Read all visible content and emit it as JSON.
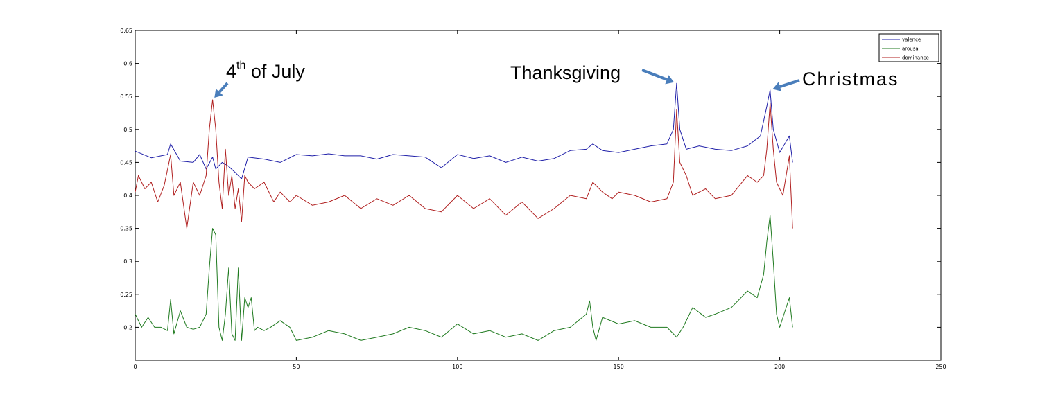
{
  "chart_data": {
    "type": "line",
    "title": "",
    "xlabel": "",
    "ylabel": "",
    "xlim": [
      0,
      250
    ],
    "ylim": [
      0.15,
      0.65
    ],
    "xticks": [
      0,
      50,
      100,
      150,
      200,
      250
    ],
    "yticks": [
      0.2,
      0.25,
      0.3,
      0.35,
      0.4,
      0.45,
      0.5,
      0.55,
      0.6,
      0.65
    ],
    "legend_position": "top-right",
    "series": [
      {
        "name": "valence",
        "color": "#1f1fa8",
        "x": [
          0,
          5,
          10,
          11,
          14,
          18,
          20,
          22,
          24,
          25,
          27,
          29,
          31,
          33,
          35,
          40,
          45,
          50,
          55,
          60,
          65,
          70,
          75,
          80,
          85,
          90,
          95,
          100,
          105,
          110,
          115,
          120,
          125,
          130,
          135,
          140,
          142,
          145,
          150,
          155,
          160,
          165,
          167,
          168,
          169,
          171,
          175,
          180,
          185,
          190,
          194,
          196,
          197,
          198,
          200,
          203,
          204
        ],
        "y": [
          0.467,
          0.457,
          0.462,
          0.478,
          0.452,
          0.45,
          0.462,
          0.44,
          0.458,
          0.44,
          0.45,
          0.444,
          0.435,
          0.425,
          0.458,
          0.455,
          0.45,
          0.462,
          0.46,
          0.463,
          0.46,
          0.46,
          0.455,
          0.462,
          0.46,
          0.458,
          0.442,
          0.462,
          0.456,
          0.46,
          0.45,
          0.458,
          0.452,
          0.456,
          0.468,
          0.47,
          0.478,
          0.468,
          0.465,
          0.47,
          0.475,
          0.478,
          0.5,
          0.57,
          0.5,
          0.47,
          0.475,
          0.47,
          0.468,
          0.475,
          0.49,
          0.535,
          0.56,
          0.5,
          0.465,
          0.49,
          0.45
        ]
      },
      {
        "name": "arousal",
        "color": "#1f7a1f",
        "x": [
          0,
          2,
          4,
          6,
          8,
          10,
          11,
          12,
          14,
          16,
          18,
          20,
          22,
          23,
          24,
          25,
          26,
          27,
          28,
          29,
          30,
          31,
          32,
          33,
          34,
          35,
          36,
          37,
          38,
          40,
          42,
          45,
          48,
          50,
          55,
          60,
          65,
          70,
          75,
          80,
          85,
          90,
          95,
          100,
          105,
          110,
          115,
          120,
          125,
          130,
          135,
          140,
          141,
          142,
          143,
          145,
          150,
          155,
          160,
          165,
          167,
          168,
          170,
          173,
          177,
          180,
          185,
          190,
          193,
          195,
          196,
          197,
          198,
          199,
          200,
          203,
          204
        ],
        "y": [
          0.22,
          0.2,
          0.215,
          0.2,
          0.2,
          0.195,
          0.242,
          0.19,
          0.225,
          0.2,
          0.197,
          0.2,
          0.22,
          0.29,
          0.35,
          0.34,
          0.2,
          0.18,
          0.22,
          0.29,
          0.19,
          0.18,
          0.29,
          0.18,
          0.245,
          0.23,
          0.245,
          0.195,
          0.2,
          0.195,
          0.2,
          0.21,
          0.2,
          0.18,
          0.185,
          0.195,
          0.19,
          0.18,
          0.185,
          0.19,
          0.2,
          0.195,
          0.185,
          0.205,
          0.19,
          0.195,
          0.185,
          0.19,
          0.18,
          0.195,
          0.2,
          0.22,
          0.24,
          0.2,
          0.18,
          0.215,
          0.205,
          0.21,
          0.2,
          0.2,
          0.19,
          0.185,
          0.2,
          0.23,
          0.215,
          0.22,
          0.23,
          0.255,
          0.245,
          0.28,
          0.33,
          0.37,
          0.3,
          0.22,
          0.2,
          0.245,
          0.2
        ]
      },
      {
        "name": "dominance",
        "color": "#b01f1f",
        "x": [
          0,
          1,
          3,
          5,
          7,
          9,
          11,
          12,
          14,
          16,
          18,
          20,
          22,
          23,
          24,
          25,
          26,
          27,
          28,
          29,
          30,
          31,
          32,
          33,
          34,
          35,
          37,
          40,
          43,
          45,
          48,
          50,
          55,
          60,
          65,
          70,
          75,
          80,
          85,
          90,
          95,
          100,
          105,
          110,
          115,
          120,
          125,
          130,
          135,
          140,
          142,
          145,
          148,
          150,
          155,
          160,
          165,
          167,
          168,
          169,
          171,
          173,
          177,
          180,
          185,
          190,
          193,
          195,
          196,
          197,
          198,
          199,
          201,
          203,
          204
        ],
        "y": [
          0.405,
          0.43,
          0.41,
          0.42,
          0.39,
          0.415,
          0.462,
          0.4,
          0.42,
          0.35,
          0.42,
          0.4,
          0.43,
          0.5,
          0.545,
          0.5,
          0.42,
          0.38,
          0.47,
          0.4,
          0.43,
          0.38,
          0.41,
          0.36,
          0.43,
          0.42,
          0.41,
          0.42,
          0.39,
          0.405,
          0.39,
          0.4,
          0.385,
          0.39,
          0.4,
          0.38,
          0.395,
          0.385,
          0.4,
          0.38,
          0.375,
          0.4,
          0.38,
          0.395,
          0.37,
          0.39,
          0.365,
          0.38,
          0.4,
          0.395,
          0.42,
          0.405,
          0.395,
          0.405,
          0.4,
          0.39,
          0.395,
          0.42,
          0.53,
          0.45,
          0.43,
          0.4,
          0.41,
          0.395,
          0.4,
          0.43,
          0.42,
          0.43,
          0.47,
          0.54,
          0.47,
          0.42,
          0.4,
          0.46,
          0.35
        ]
      }
    ],
    "annotations": [
      {
        "text_main": "4",
        "text_sup": "th",
        "text_rest": " of July",
        "x": 24,
        "y": 0.545
      },
      {
        "text_main": "Thanksgiving",
        "x": 168,
        "y": 0.57
      },
      {
        "text_main": "Christmas",
        "x": 197,
        "y": 0.56
      }
    ]
  }
}
